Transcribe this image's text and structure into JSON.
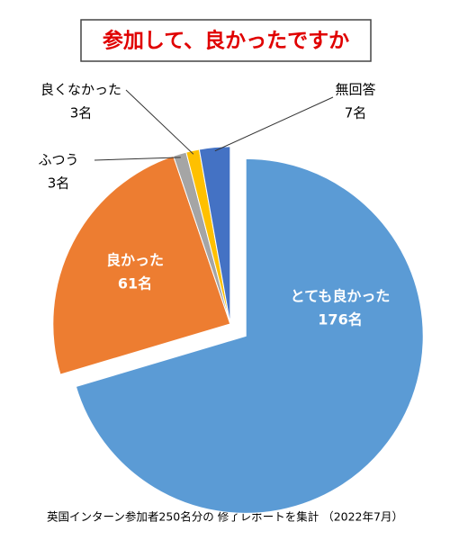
{
  "chart_data": {
    "type": "pie",
    "title": "参加して、良かったですか",
    "categories": [
      "とても良かった",
      "良かった",
      "ふつう",
      "良くなかった",
      "無回答"
    ],
    "values": [
      176,
      61,
      3,
      3,
      7
    ],
    "value_labels": [
      "176名",
      "61名",
      "3名",
      "3名",
      "7名"
    ],
    "colors": [
      "#5b9bd5",
      "#ed7d31",
      "#a5a5a5",
      "#ffc000",
      "#4472c4"
    ],
    "footnote": "英国インターン参加者250名分の 修了レポートを集計 （2022年7月）"
  }
}
